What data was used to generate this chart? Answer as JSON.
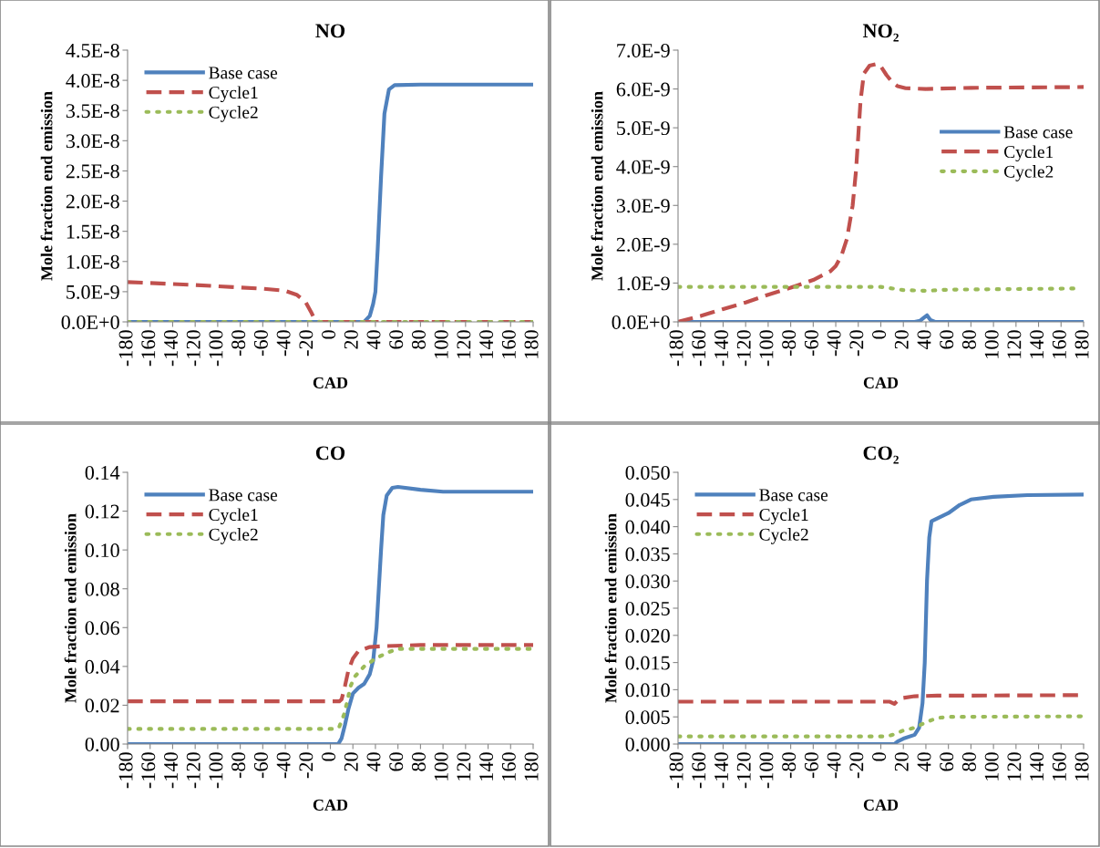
{
  "chart_data": [
    {
      "type": "line",
      "title": "NO",
      "xlabel": "CAD",
      "ylabel": "Mole fraction end emission",
      "legend": "top left",
      "xlim": [
        -180,
        180
      ],
      "xticks": [
        -180,
        -160,
        -140,
        -120,
        -100,
        -80,
        -60,
        -40,
        -20,
        0,
        20,
        40,
        60,
        80,
        100,
        120,
        140,
        160,
        180
      ],
      "ylim": [
        0,
        4.5e-08
      ],
      "yticks": [
        {
          "value": 0,
          "label": "0.0E+0"
        },
        {
          "value": 5e-09,
          "label": "5.0E-9"
        },
        {
          "value": 1e-08,
          "label": "1.0E-8"
        },
        {
          "value": 1.5e-08,
          "label": "1.5E-8"
        },
        {
          "value": 2e-08,
          "label": "2.0E-8"
        },
        {
          "value": 2.5e-08,
          "label": "2.5E-8"
        },
        {
          "value": 3e-08,
          "label": "3.0E-8"
        },
        {
          "value": 3.5e-08,
          "label": "3.5E-8"
        },
        {
          "value": 4e-08,
          "label": "4.0E-8"
        },
        {
          "value": 4.5e-08,
          "label": "4.5E-8"
        }
      ],
      "series": [
        {
          "name": "Base case",
          "color": "#4f81bd",
          "line_style": "solid",
          "x": [
            -180,
            30,
            35,
            38,
            40,
            42,
            45,
            48,
            52,
            57,
            80,
            180
          ],
          "values": [
            0,
            0,
            1e-09,
            3e-09,
            5e-09,
            1.2e-08,
            2.4e-08,
            3.45e-08,
            3.85e-08,
            3.92e-08,
            3.93e-08,
            3.93e-08
          ]
        },
        {
          "name": "Cycle1",
          "color": "#c0504d",
          "line_style": "dashed",
          "x": [
            -180,
            -120,
            -60,
            -40,
            -30,
            -22,
            -17,
            -14,
            -10,
            180
          ],
          "values": [
            6.6e-09,
            6.1e-09,
            5.5e-09,
            5.15e-09,
            4.5e-09,
            3.3e-09,
            1.6e-09,
            4e-10,
            0,
            0
          ]
        },
        {
          "name": "Cycle2",
          "color": "#9bbb59",
          "line_style": "dotted",
          "x": [
            -180,
            180
          ],
          "values": [
            0,
            0
          ]
        }
      ]
    },
    {
      "type": "line",
      "title": "NO₂",
      "xlabel": "CAD",
      "ylabel": "Mole fraction end emission",
      "legend": "right",
      "xlim": [
        -180,
        180
      ],
      "xticks": [
        -180,
        -160,
        -140,
        -120,
        -100,
        -80,
        -60,
        -40,
        -20,
        0,
        20,
        40,
        60,
        80,
        100,
        120,
        140,
        160,
        180
      ],
      "ylim": [
        0,
        7e-09
      ],
      "yticks": [
        {
          "value": 0,
          "label": "0.0E+0"
        },
        {
          "value": 1e-09,
          "label": "1.0E-9"
        },
        {
          "value": 2e-09,
          "label": "2.0E-9"
        },
        {
          "value": 3e-09,
          "label": "3.0E-9"
        },
        {
          "value": 4e-09,
          "label": "4.0E-9"
        },
        {
          "value": 5e-09,
          "label": "5.0E-9"
        },
        {
          "value": 6e-09,
          "label": "6.0E-9"
        },
        {
          "value": 7e-09,
          "label": "7.0E-9"
        }
      ],
      "series": [
        {
          "name": "Base case",
          "color": "#4f81bd",
          "line_style": "solid",
          "x": [
            -180,
            30,
            35,
            38,
            41,
            44,
            48,
            180
          ],
          "values": [
            0,
            0,
            3e-11,
            1e-10,
            1.7e-10,
            5e-11,
            0,
            0
          ]
        },
        {
          "name": "Cycle1",
          "color": "#c0504d",
          "line_style": "dashed",
          "x": [
            -180,
            -160,
            -140,
            -120,
            -100,
            -80,
            -60,
            -45,
            -40,
            -35,
            -30,
            -25,
            -22,
            -20,
            -18,
            -15,
            -10,
            -3,
            0,
            5,
            10,
            15,
            22,
            40,
            80,
            180
          ],
          "values": [
            0,
            1.5e-10,
            3.3e-10,
            5e-10,
            7e-10,
            8.8e-10,
            1.08e-09,
            1.3e-09,
            1.44e-09,
            1.7e-09,
            2.15e-09,
            3e-09,
            3.9e-09,
            4.8e-09,
            5.7e-09,
            6.4e-09,
            6.6e-09,
            6.65e-09,
            6.58e-09,
            6.36e-09,
            6.18e-09,
            6.07e-09,
            6.02e-09,
            6e-09,
            6.03e-09,
            6.05e-09
          ]
        },
        {
          "name": "Cycle2",
          "color": "#9bbb59",
          "line_style": "dotted",
          "x": [
            -180,
            0,
            20,
            40,
            60,
            175
          ],
          "values": [
            9e-10,
            9e-10,
            8.2e-10,
            8e-10,
            8.3e-10,
            8.6e-10
          ]
        }
      ]
    },
    {
      "type": "line",
      "title": "CO",
      "xlabel": "CAD",
      "ylabel": "Mole fraction end emission",
      "legend": "top left",
      "xlim": [
        -180,
        180
      ],
      "xticks": [
        -180,
        -160,
        -140,
        -120,
        -100,
        -80,
        -60,
        -40,
        -20,
        0,
        20,
        40,
        60,
        80,
        100,
        120,
        140,
        160,
        180
      ],
      "ylim": [
        0,
        0.14
      ],
      "yticks": [
        {
          "value": 0,
          "label": "0.00"
        },
        {
          "value": 0.02,
          "label": "0.02"
        },
        {
          "value": 0.04,
          "label": "0.04"
        },
        {
          "value": 0.06,
          "label": "0.06"
        },
        {
          "value": 0.08,
          "label": "0.08"
        },
        {
          "value": 0.1,
          "label": "0.10"
        },
        {
          "value": 0.12,
          "label": "0.12"
        },
        {
          "value": 0.14,
          "label": "0.14"
        }
      ],
      "series": [
        {
          "name": "Base case",
          "color": "#4f81bd",
          "line_style": "solid",
          "x": [
            -180,
            7,
            10,
            13,
            16,
            20,
            25,
            30,
            35,
            38,
            41,
            43,
            45,
            47,
            50,
            55,
            60,
            80,
            100,
            180
          ],
          "values": [
            0,
            0,
            0.003,
            0.01,
            0.018,
            0.026,
            0.029,
            0.031,
            0.036,
            0.043,
            0.06,
            0.08,
            0.1,
            0.118,
            0.128,
            0.132,
            0.1325,
            0.131,
            0.13,
            0.13
          ]
        },
        {
          "name": "Cycle1",
          "color": "#c0504d",
          "line_style": "dashed",
          "x": [
            -180,
            8,
            10,
            13,
            16,
            20,
            25,
            35,
            50,
            80,
            180
          ],
          "values": [
            0.022,
            0.022,
            0.023,
            0.03,
            0.038,
            0.044,
            0.048,
            0.05,
            0.0505,
            0.051,
            0.051
          ]
        },
        {
          "name": "Cycle2",
          "color": "#9bbb59",
          "line_style": "dotted",
          "x": [
            -180,
            5,
            8,
            12,
            15,
            18,
            22,
            30,
            40,
            50,
            60,
            180
          ],
          "values": [
            0.0078,
            0.0078,
            0.009,
            0.015,
            0.022,
            0.03,
            0.035,
            0.04,
            0.044,
            0.047,
            0.049,
            0.049
          ]
        }
      ]
    },
    {
      "type": "line",
      "title": "CO₂",
      "xlabel": "CAD",
      "ylabel": "Mole fraction end emission",
      "legend": "top left",
      "xlim": [
        -180,
        180
      ],
      "xticks": [
        -180,
        -160,
        -140,
        -120,
        -100,
        -80,
        -60,
        -40,
        -20,
        0,
        20,
        40,
        60,
        80,
        100,
        120,
        140,
        160,
        180
      ],
      "ylim": [
        0,
        0.05
      ],
      "yticks": [
        {
          "value": 0,
          "label": "0.000"
        },
        {
          "value": 0.005,
          "label": "0.005"
        },
        {
          "value": 0.01,
          "label": "0.010"
        },
        {
          "value": 0.015,
          "label": "0.015"
        },
        {
          "value": 0.02,
          "label": "0.020"
        },
        {
          "value": 0.025,
          "label": "0.025"
        },
        {
          "value": 0.03,
          "label": "0.030"
        },
        {
          "value": 0.035,
          "label": "0.035"
        },
        {
          "value": 0.04,
          "label": "0.040"
        },
        {
          "value": 0.045,
          "label": "0.045"
        },
        {
          "value": 0.05,
          "label": "0.050"
        }
      ],
      "series": [
        {
          "name": "Base case",
          "color": "#4f81bd",
          "line_style": "solid",
          "x": [
            -180,
            12,
            15,
            20,
            30,
            34,
            37,
            39,
            41,
            43,
            45,
            50,
            55,
            60,
            70,
            80,
            100,
            130,
            180
          ],
          "values": [
            0,
            0,
            0.0005,
            0.001,
            0.0017,
            0.003,
            0.0075,
            0.015,
            0.03,
            0.038,
            0.041,
            0.0415,
            0.042,
            0.0425,
            0.044,
            0.045,
            0.0455,
            0.0458,
            0.0459
          ]
        },
        {
          "name": "Cycle1",
          "color": "#c0504d",
          "line_style": "dashed",
          "x": [
            -180,
            8,
            12,
            15,
            20,
            30,
            50,
            180
          ],
          "values": [
            0.0078,
            0.0078,
            0.0074,
            0.008,
            0.0085,
            0.0088,
            0.0089,
            0.009
          ]
        },
        {
          "name": "Cycle2",
          "color": "#9bbb59",
          "line_style": "dotted",
          "x": [
            -180,
            5,
            12,
            20,
            30,
            40,
            50,
            60,
            180
          ],
          "values": [
            0.0014,
            0.0014,
            0.0018,
            0.0025,
            0.003,
            0.004,
            0.0048,
            0.005,
            0.0051
          ]
        }
      ]
    }
  ]
}
